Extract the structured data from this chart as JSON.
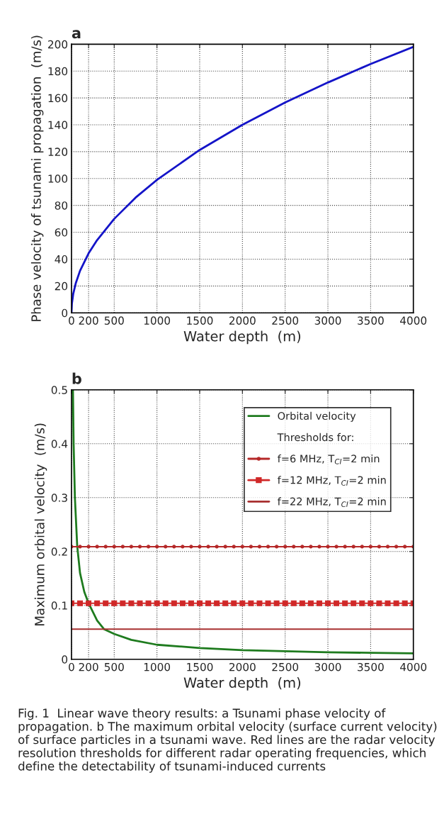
{
  "chart_data": [
    {
      "type": "line",
      "title": "a",
      "xlabel": "Water depth  (m)",
      "ylabel": "Phase velocity of tsunami propagation  (m/s)",
      "x": [
        0,
        5,
        20,
        50,
        100,
        200,
        300,
        500,
        750,
        1000,
        1500,
        2000,
        2500,
        3000,
        3500,
        4000
      ],
      "series": [
        {
          "color": "#1414c8",
          "values": [
            0,
            7,
            14,
            22,
            31.3,
            44.3,
            54.2,
            70,
            85.8,
            99,
            121.3,
            140,
            156.6,
            171.5,
            185.3,
            198
          ]
        }
      ],
      "xlim": [
        0,
        4000
      ],
      "ylim": [
        0,
        200
      ],
      "xticks": [
        0,
        200,
        500,
        1000,
        1500,
        2000,
        2500,
        3000,
        3500,
        4000
      ],
      "yticks": [
        0,
        20,
        40,
        60,
        80,
        100,
        120,
        140,
        160,
        180,
        200
      ],
      "grid": true,
      "line_style": "solid",
      "marker": "none"
    },
    {
      "type": "line",
      "title": "b",
      "xlabel": "Water depth  (m)",
      "ylabel": "Maximum orbital velocity  (m/s)",
      "series": [
        {
          "name": "Orbital velocity",
          "color": "#1e7b1e",
          "marker": "none",
          "x": [
            17,
            25,
            40,
            67,
            100,
            150,
            200,
            300,
            380,
            500,
            700,
            1000,
            1500,
            2000,
            2500,
            3000,
            3500,
            4000
          ],
          "values": [
            0.5,
            0.4,
            0.3,
            0.21,
            0.16,
            0.125,
            0.104,
            0.072,
            0.056,
            0.047,
            0.036,
            0.027,
            0.021,
            0.017,
            0.015,
            0.013,
            0.012,
            0.011
          ]
        },
        {
          "name": "f=6 MHz, T$_{CI}$=2 min",
          "color": "#b52828",
          "marker": "circle",
          "x": [
            0,
            100,
            200,
            300,
            400,
            500,
            600,
            700,
            800,
            900,
            1000,
            1100,
            1200,
            1300,
            1400,
            1500,
            1600,
            1700,
            1800,
            1900,
            2000,
            2100,
            2200,
            2300,
            2400,
            2500,
            2600,
            2700,
            2800,
            2900,
            3000,
            3100,
            3200,
            3300,
            3400,
            3500,
            3600,
            3700,
            3800,
            3900,
            4000
          ],
          "values": [
            0.209,
            0.209,
            0.209,
            0.209,
            0.209,
            0.209,
            0.209,
            0.209,
            0.209,
            0.209,
            0.209,
            0.209,
            0.209,
            0.209,
            0.209,
            0.209,
            0.209,
            0.209,
            0.209,
            0.209,
            0.209,
            0.209,
            0.209,
            0.209,
            0.209,
            0.209,
            0.209,
            0.209,
            0.209,
            0.209,
            0.209,
            0.209,
            0.209,
            0.209,
            0.209,
            0.209,
            0.209,
            0.209,
            0.209,
            0.209,
            0.209
          ]
        },
        {
          "name": "f=12 MHz, T$_{CI}$=2 min",
          "color": "#d02828",
          "marker": "square",
          "x": [
            0,
            100,
            200,
            300,
            400,
            500,
            600,
            700,
            800,
            900,
            1000,
            1100,
            1200,
            1300,
            1400,
            1500,
            1600,
            1700,
            1800,
            1900,
            2000,
            2100,
            2200,
            2300,
            2400,
            2500,
            2600,
            2700,
            2800,
            2900,
            3000,
            3100,
            3200,
            3300,
            3400,
            3500,
            3600,
            3700,
            3800,
            3900,
            4000
          ],
          "values": [
            0.104,
            0.104,
            0.104,
            0.104,
            0.104,
            0.104,
            0.104,
            0.104,
            0.104,
            0.104,
            0.104,
            0.104,
            0.104,
            0.104,
            0.104,
            0.104,
            0.104,
            0.104,
            0.104,
            0.104,
            0.104,
            0.104,
            0.104,
            0.104,
            0.104,
            0.104,
            0.104,
            0.104,
            0.104,
            0.104,
            0.104,
            0.104,
            0.104,
            0.104,
            0.104,
            0.104,
            0.104,
            0.104,
            0.104,
            0.104,
            0.104
          ]
        },
        {
          "name": "f=22 MHz, T$_{CI}$=2 min",
          "color": "#a83030",
          "marker": "none",
          "x": [
            0,
            4000
          ],
          "values": [
            0.056,
            0.056
          ]
        }
      ],
      "xlim": [
        0,
        4000
      ],
      "ylim": [
        0,
        0.5
      ],
      "xticks": [
        0,
        200,
        500,
        1000,
        1500,
        2000,
        2500,
        3000,
        3500,
        4000
      ],
      "yticks": [
        0,
        0.1,
        0.2,
        0.3,
        0.4,
        0.5
      ],
      "grid": true,
      "legend": "top right",
      "line_style": "solid",
      "legend_title": "Thresholds for:",
      "annotations": [
        "Fig. 1  Linear wave theory results: a Tsunami phase velocity of propagation. b The maximum orbital velocity (surface current velocity) of surface particles in a tsunami wave. Red lines are the radar velocity resolution thresholds for different radar operating frequencies, which define the detectability of tsunami-induced currents"
      ]
    }
  ]
}
